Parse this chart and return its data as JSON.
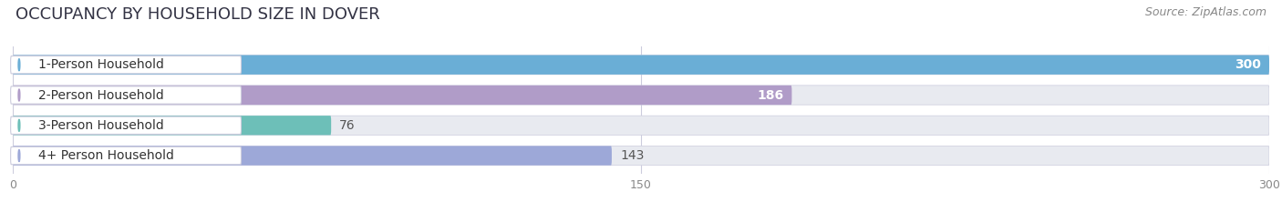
{
  "title": "OCCUPANCY BY HOUSEHOLD SIZE IN DOVER",
  "source": "Source: ZipAtlas.com",
  "categories": [
    "1-Person Household",
    "2-Person Household",
    "3-Person Household",
    "4+ Person Household"
  ],
  "values": [
    300,
    186,
    76,
    143
  ],
  "bar_colors": [
    "#6aaed6",
    "#b09cc8",
    "#6dbfb8",
    "#9da8d8"
  ],
  "bar_bg_color": "#e8eaf0",
  "xlim": [
    0,
    300
  ],
  "xticks": [
    0,
    150,
    300
  ],
  "label_colors": [
    "#ffffff",
    "#ffffff",
    "#555555",
    "#555555"
  ],
  "title_fontsize": 13,
  "source_fontsize": 9,
  "bar_label_fontsize": 10,
  "cat_label_fontsize": 10,
  "tick_fontsize": 9,
  "background_color": "#ffffff",
  "plot_bg_color": "#ffffff"
}
